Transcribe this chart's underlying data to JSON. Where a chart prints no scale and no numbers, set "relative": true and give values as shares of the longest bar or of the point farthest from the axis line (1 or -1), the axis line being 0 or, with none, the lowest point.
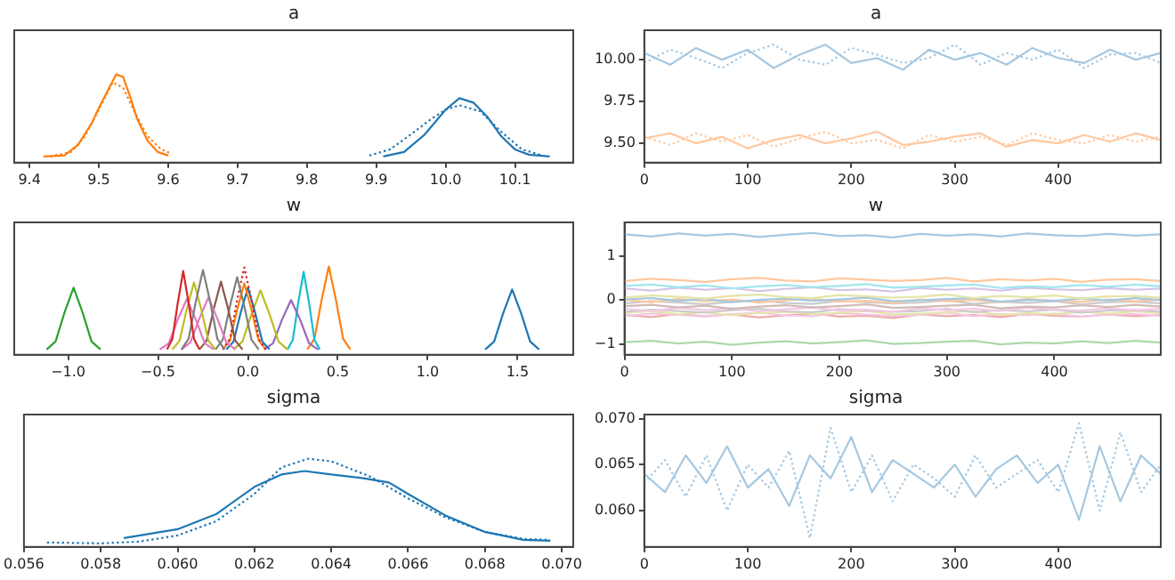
{
  "chart_data": [
    {
      "type": "line",
      "title": "a",
      "relative": true,
      "tick_labels": "x",
      "marker": "none",
      "xlim": [
        9.378,
        10.184
      ],
      "xticks": [
        9.4,
        9.5,
        9.6,
        9.7,
        9.8,
        9.9,
        {
          "value": 10.0,
          "label": "10.0"
        },
        10.1
      ],
      "series": [
        {
          "color": "#ff7f0e",
          "line_style": "solid",
          "x": [
            9.42,
            9.45,
            9.47,
            9.49,
            9.5,
            9.515,
            9.525,
            9.535,
            9.545,
            9.555,
            9.57,
            9.585,
            9.6
          ],
          "values": [
            0.07,
            0.08,
            0.2,
            0.45,
            0.62,
            0.85,
            1.0,
            0.97,
            0.75,
            0.5,
            0.25,
            0.12,
            0.08
          ]
        },
        {
          "color": "#ff7f0e",
          "line_style": "dotted",
          "x": [
            9.43,
            9.46,
            9.48,
            9.5,
            9.52,
            9.535,
            9.55,
            9.57,
            9.59,
            9.605
          ],
          "values": [
            0.07,
            0.12,
            0.3,
            0.6,
            0.91,
            0.85,
            0.6,
            0.3,
            0.15,
            0.1
          ]
        },
        {
          "color": "#1f77b4",
          "line_style": "solid",
          "x": [
            9.91,
            9.94,
            9.97,
            10.0,
            10.02,
            10.04,
            10.06,
            10.08,
            10.1,
            10.12,
            10.15
          ],
          "values": [
            0.07,
            0.12,
            0.32,
            0.6,
            0.73,
            0.68,
            0.52,
            0.3,
            0.15,
            0.09,
            0.07
          ]
        },
        {
          "color": "#1f77b4",
          "line_style": "dotted",
          "x": [
            9.89,
            9.92,
            9.95,
            9.98,
            10.0,
            10.02,
            10.05,
            10.08,
            10.11,
            10.14
          ],
          "values": [
            0.08,
            0.15,
            0.32,
            0.5,
            0.6,
            0.65,
            0.58,
            0.35,
            0.15,
            0.08
          ]
        }
      ]
    },
    {
      "type": "line",
      "title": "a",
      "marker": "none",
      "xlim": [
        0,
        499
      ],
      "xticks": [
        0,
        100,
        200,
        300,
        400
      ],
      "ylim": [
        9.385,
        10.176
      ],
      "yticks": [
        {
          "value": 9.5,
          "label": "9.50"
        },
        {
          "value": 9.75,
          "label": "9.75"
        },
        {
          "value": 10.0,
          "label": "10.00"
        }
      ],
      "x": [
        0,
        25,
        50,
        75,
        100,
        125,
        150,
        175,
        200,
        225,
        250,
        275,
        300,
        325,
        350,
        375,
        400,
        425,
        450,
        475,
        499
      ],
      "series": [
        {
          "color": "#a5c8e1",
          "line_style": "solid",
          "values": [
            10.04,
            9.97,
            10.07,
            10.0,
            10.06,
            9.95,
            10.03,
            10.09,
            9.98,
            10.01,
            9.94,
            10.06,
            10.0,
            10.04,
            9.97,
            10.07,
            10.01,
            9.98,
            10.06,
            10.0,
            10.04
          ]
        },
        {
          "color": "#a5c8e1",
          "line_style": "dotted",
          "values": [
            9.98,
            10.06,
            10.01,
            9.95,
            10.04,
            10.09,
            10.0,
            9.97,
            10.07,
            10.03,
            9.98,
            10.01,
            10.09,
            9.97,
            10.04,
            10.0,
            10.06,
            9.95,
            10.03,
            10.04,
            9.98
          ]
        },
        {
          "color": "#ffc89f",
          "line_style": "solid",
          "values": [
            9.53,
            9.56,
            9.5,
            9.54,
            9.47,
            9.52,
            9.55,
            9.5,
            9.53,
            9.57,
            9.49,
            9.51,
            9.54,
            9.56,
            9.48,
            9.52,
            9.5,
            9.55,
            9.51,
            9.56,
            9.52
          ]
        },
        {
          "color": "#ffc89f",
          "line_style": "dotted",
          "values": [
            9.54,
            9.49,
            9.56,
            9.51,
            9.55,
            9.48,
            9.53,
            9.57,
            9.5,
            9.52,
            9.47,
            9.55,
            9.51,
            9.54,
            9.49,
            9.56,
            9.52,
            9.5,
            9.55,
            9.51,
            9.54
          ]
        }
      ]
    },
    {
      "type": "line",
      "title": "w",
      "relative": true,
      "tick_labels": "x",
      "marker": "none",
      "xlim": [
        -1.3,
        1.81
      ],
      "xticks": [
        {
          "value": -1,
          "label": "−1.0"
        },
        {
          "value": -0.5,
          "label": "−0.5"
        },
        {
          "value": 0,
          "label": "0.0"
        },
        0.5,
        {
          "value": 1,
          "label": "1.0"
        },
        1.5
      ],
      "series": [
        {
          "color": "#2ca02c",
          "line_style": "solid",
          "x": [
            -1.12,
            -1.07,
            -1.02,
            -0.97,
            -0.92,
            -0.87,
            -0.82
          ],
          "values": [
            0.06,
            0.15,
            0.48,
            0.76,
            0.48,
            0.15,
            0.06
          ]
        },
        {
          "color": "#1f77b4",
          "line_style": "solid",
          "x": [
            1.32,
            1.37,
            1.42,
            1.47,
            1.52,
            1.57,
            1.62
          ],
          "values": [
            0.06,
            0.15,
            0.47,
            0.74,
            0.47,
            0.15,
            0.06
          ]
        },
        {
          "color": "#d62728",
          "line_style": "solid",
          "x": [
            -0.45,
            -0.42,
            -0.39,
            -0.36,
            -0.33,
            -0.3,
            -0.27
          ],
          "values": [
            0.06,
            0.18,
            0.59,
            0.95,
            0.59,
            0.18,
            0.06
          ]
        },
        {
          "color": "#7f7f7f",
          "line_style": "solid",
          "x": [
            -0.37,
            -0.33,
            -0.29,
            -0.25,
            -0.21,
            -0.17,
            -0.13
          ],
          "values": [
            0.06,
            0.18,
            0.6,
            0.96,
            0.6,
            0.18,
            0.06
          ]
        },
        {
          "color": "#bcbd22",
          "line_style": "solid",
          "x": [
            -0.42,
            -0.38,
            -0.34,
            -0.3,
            -0.26,
            -0.22,
            -0.18
          ],
          "values": [
            0.06,
            0.16,
            0.52,
            0.82,
            0.52,
            0.16,
            0.06
          ]
        },
        {
          "color": "#e377c2",
          "line_style": "solid",
          "x": [
            -0.49,
            -0.44,
            -0.39,
            -0.34,
            -0.29,
            -0.24,
            -0.19
          ],
          "values": [
            0.06,
            0.13,
            0.4,
            0.63,
            0.4,
            0.13,
            0.06
          ]
        },
        {
          "color": "#e377c2",
          "line_style": "solid",
          "x": [
            -0.37,
            -0.32,
            -0.27,
            -0.22,
            -0.17,
            -0.12,
            -0.07
          ],
          "values": [
            0.06,
            0.14,
            0.41,
            0.65,
            0.41,
            0.14,
            0.06
          ]
        },
        {
          "color": "#8c564b",
          "line_style": "solid",
          "x": [
            -0.27,
            -0.23,
            -0.19,
            -0.15,
            -0.11,
            -0.07,
            -0.03
          ],
          "values": [
            0.06,
            0.16,
            0.52,
            0.83,
            0.52,
            0.16,
            0.06
          ]
        },
        {
          "color": "#7f7f7f",
          "line_style": "solid",
          "x": [
            -0.18,
            -0.14,
            -0.1,
            -0.06,
            -0.02,
            0.02,
            0.06
          ],
          "values": [
            0.06,
            0.17,
            0.55,
            0.88,
            0.55,
            0.17,
            0.06
          ]
        },
        {
          "color": "#d62728",
          "line_style": "dotted",
          "x": [
            -0.14,
            -0.1,
            -0.06,
            -0.02,
            0.02,
            0.06,
            0.1
          ],
          "values": [
            0.06,
            0.18,
            0.62,
            0.99,
            0.62,
            0.18,
            0.06
          ]
        },
        {
          "color": "#ff7f0e",
          "line_style": "solid",
          "x": [
            -0.14,
            -0.1,
            -0.06,
            -0.02,
            0.02,
            0.06,
            0.1
          ],
          "values": [
            0.06,
            0.16,
            0.51,
            0.81,
            0.51,
            0.16,
            0.06
          ]
        },
        {
          "color": "#1f77b4",
          "line_style": "solid",
          "x": [
            -0.12,
            -0.08,
            -0.04,
            0,
            0.04,
            0.08,
            0.12
          ],
          "values": [
            0.06,
            0.15,
            0.48,
            0.76,
            0.48,
            0.15,
            0.06
          ]
        },
        {
          "color": "#bcbd22",
          "line_style": "solid",
          "x": [
            -0.08,
            -0.03,
            0.02,
            0.07,
            0.12,
            0.17,
            0.22
          ],
          "values": [
            0.06,
            0.15,
            0.46,
            0.73,
            0.46,
            0.15,
            0.06
          ]
        },
        {
          "color": "#9467bd",
          "line_style": "solid",
          "x": [
            0.09,
            0.14,
            0.19,
            0.24,
            0.29,
            0.34,
            0.39
          ],
          "values": [
            0.06,
            0.13,
            0.4,
            0.62,
            0.4,
            0.13,
            0.06
          ]
        },
        {
          "color": "#17becf",
          "line_style": "solid",
          "x": [
            0.22,
            0.25,
            0.28,
            0.31,
            0.34,
            0.37,
            0.4
          ],
          "values": [
            0.06,
            0.17,
            0.59,
            0.94,
            0.59,
            0.17,
            0.06
          ]
        },
        {
          "color": "#ff7f0e",
          "line_style": "solid",
          "x": [
            0.33,
            0.37,
            0.41,
            0.45,
            0.49,
            0.53,
            0.57
          ],
          "values": [
            0.06,
            0.18,
            0.62,
            1.0,
            0.62,
            0.18,
            0.06
          ]
        }
      ]
    },
    {
      "type": "line",
      "title": "w",
      "marker": "none",
      "xlim": [
        0,
        499
      ],
      "xticks": [
        0,
        100,
        200,
        300,
        400
      ],
      "ylim": [
        -1.245,
        1.76
      ],
      "yticks": [
        {
          "value": -1,
          "label": "−1"
        },
        0,
        1
      ],
      "x": [
        0,
        25,
        50,
        75,
        100,
        125,
        150,
        175,
        200,
        225,
        250,
        275,
        300,
        325,
        350,
        375,
        400,
        425,
        450,
        475,
        499
      ],
      "series": [
        {
          "color": "#a5c8e1",
          "line_style": "solid",
          "values": [
            1.49,
            1.44,
            1.51,
            1.46,
            1.5,
            1.43,
            1.48,
            1.52,
            1.45,
            1.47,
            1.42,
            1.5,
            1.46,
            1.49,
            1.44,
            1.51,
            1.47,
            1.45,
            1.5,
            1.46,
            1.49
          ]
        },
        {
          "color": "#ffc89f",
          "line_style": "solid",
          "values": [
            0.43,
            0.48,
            0.45,
            0.41,
            0.47,
            0.5,
            0.44,
            0.42,
            0.49,
            0.46,
            0.43,
            0.45,
            0.5,
            0.42,
            0.47,
            0.44,
            0.48,
            0.41,
            0.46,
            0.47,
            0.43
          ]
        },
        {
          "color": "#a2e6ed",
          "line_style": "solid",
          "values": [
            0.32,
            0.35,
            0.29,
            0.33,
            0.26,
            0.31,
            0.34,
            0.29,
            0.32,
            0.36,
            0.28,
            0.3,
            0.33,
            0.35,
            0.27,
            0.31,
            0.29,
            0.34,
            0.3,
            0.35,
            0.31
          ]
        },
        {
          "color": "#d4c2e5",
          "line_style": "solid",
          "values": [
            0.26,
            0.21,
            0.28,
            0.23,
            0.27,
            0.2,
            0.25,
            0.29,
            0.22,
            0.24,
            0.19,
            0.27,
            0.23,
            0.26,
            0.21,
            0.28,
            0.24,
            0.22,
            0.27,
            0.23,
            0.26
          ]
        },
        {
          "color": "#e4e5a7",
          "line_style": "solid",
          "values": [
            0.05,
            0.1,
            0.07,
            0.03,
            0.09,
            0.12,
            0.06,
            0.04,
            0.11,
            0.08,
            0.05,
            0.07,
            0.12,
            0.04,
            0.09,
            0.06,
            0.1,
            0.03,
            0.08,
            0.09,
            0.05
          ]
        },
        {
          "color": "#a5c8e1",
          "line_style": "solid",
          "values": [
            0.01,
            0.04,
            -0.02,
            0.02,
            -0.05,
            0,
            0.03,
            -0.02,
            0.01,
            0.05,
            -0.03,
            -0.01,
            0.02,
            0.04,
            -0.04,
            0,
            -0.02,
            0.03,
            -0.01,
            0.04,
            0
          ]
        },
        {
          "color": "#ffc89f",
          "line_style": "solid",
          "values": [
            0,
            -0.05,
            0.02,
            -0.03,
            0.01,
            -0.06,
            -0.01,
            0.03,
            -0.04,
            -0.02,
            -0.07,
            0.01,
            -0.03,
            0,
            -0.05,
            0.02,
            -0.02,
            -0.04,
            0.01,
            -0.03,
            0
          ]
        },
        {
          "color": "#cbcbcb",
          "line_style": "solid",
          "values": [
            -0.08,
            -0.03,
            -0.06,
            -0.1,
            -0.04,
            -0.01,
            -0.07,
            -0.09,
            -0.02,
            -0.05,
            -0.08,
            -0.06,
            -0.01,
            -0.09,
            -0.04,
            -0.07,
            -0.03,
            -0.1,
            -0.05,
            -0.04,
            -0.08
          ]
        },
        {
          "color": "#d1bbb7",
          "line_style": "solid",
          "values": [
            -0.14,
            -0.11,
            -0.17,
            -0.13,
            -0.2,
            -0.15,
            -0.12,
            -0.17,
            -0.14,
            -0.1,
            -0.18,
            -0.16,
            -0.13,
            -0.11,
            -0.19,
            -0.15,
            -0.17,
            -0.12,
            -0.16,
            -0.11,
            -0.15
          ]
        },
        {
          "color": "#f4c7e5",
          "line_style": "solid",
          "values": [
            -0.2,
            -0.25,
            -0.18,
            -0.23,
            -0.19,
            -0.26,
            -0.21,
            -0.17,
            -0.24,
            -0.22,
            -0.27,
            -0.19,
            -0.23,
            -0.2,
            -0.25,
            -0.18,
            -0.22,
            -0.24,
            -0.19,
            -0.23,
            -0.2
          ]
        },
        {
          "color": "#cbcbcb",
          "line_style": "solid",
          "values": [
            -0.27,
            -0.22,
            -0.25,
            -0.29,
            -0.23,
            -0.2,
            -0.26,
            -0.28,
            -0.21,
            -0.24,
            -0.27,
            -0.25,
            -0.2,
            -0.28,
            -0.23,
            -0.26,
            -0.22,
            -0.29,
            -0.24,
            -0.23,
            -0.27
          ]
        },
        {
          "color": "#e4e5a7",
          "line_style": "solid",
          "values": [
            -0.29,
            -0.26,
            -0.32,
            -0.28,
            -0.35,
            -0.3,
            -0.27,
            -0.32,
            -0.29,
            -0.25,
            -0.33,
            -0.31,
            -0.28,
            -0.26,
            -0.34,
            -0.3,
            -0.32,
            -0.27,
            -0.31,
            -0.26,
            -0.3
          ]
        },
        {
          "color": "#f4c7e5",
          "line_style": "solid",
          "values": [
            -0.36,
            -0.31,
            -0.34,
            -0.38,
            -0.32,
            -0.29,
            -0.35,
            -0.37,
            -0.3,
            -0.33,
            -0.36,
            -0.34,
            -0.29,
            -0.37,
            -0.32,
            -0.35,
            -0.31,
            -0.38,
            -0.33,
            -0.32,
            -0.36
          ]
        },
        {
          "color": "#efa9a9",
          "line_style": "solid",
          "values": [
            -0.34,
            -0.39,
            -0.32,
            -0.37,
            -0.33,
            -0.4,
            -0.35,
            -0.31,
            -0.38,
            -0.36,
            -0.41,
            -0.33,
            -0.37,
            -0.34,
            -0.39,
            -0.32,
            -0.36,
            -0.38,
            -0.33,
            -0.37,
            -0.34
          ]
        },
        {
          "color": "#abd9ab",
          "line_style": "solid",
          "values": [
            -0.96,
            -0.93,
            -0.99,
            -0.95,
            -1.02,
            -0.97,
            -0.94,
            -0.99,
            -0.96,
            -0.92,
            -1.0,
            -0.98,
            -0.95,
            -0.93,
            -1.01,
            -0.97,
            -0.99,
            -0.94,
            -0.98,
            -0.93,
            -0.97
          ]
        }
      ]
    },
    {
      "type": "line",
      "title": "sigma",
      "relative": true,
      "tick_labels": "x",
      "marker": "none",
      "xlim": [
        0.056,
        0.0703
      ],
      "xticks": [
        0.056,
        0.058,
        {
          "value": 0.06,
          "label": "0.060"
        },
        0.062,
        0.064,
        0.066,
        0.068,
        {
          "value": 0.07,
          "label": "0.070"
        }
      ],
      "series": [
        {
          "color": "#1f77b4",
          "line_style": "solid",
          "x": [
            0.0586,
            0.06,
            0.061,
            0.062,
            0.0627,
            0.0633,
            0.064,
            0.0648,
            0.0655,
            0.066,
            0.067,
            0.068,
            0.069,
            0.0697
          ],
          "values": [
            0.1,
            0.2,
            0.37,
            0.68,
            0.82,
            0.86,
            0.82,
            0.78,
            0.73,
            0.6,
            0.35,
            0.17,
            0.08,
            0.07
          ]
        },
        {
          "color": "#1f77b4",
          "line_style": "dotted",
          "x": [
            0.0566,
            0.058,
            0.059,
            0.06,
            0.061,
            0.062,
            0.0627,
            0.0634,
            0.064,
            0.065,
            0.066,
            0.067,
            0.068,
            0.069,
            0.0697
          ],
          "values": [
            0.05,
            0.04,
            0.06,
            0.13,
            0.29,
            0.6,
            0.9,
            1.0,
            0.97,
            0.8,
            0.55,
            0.33,
            0.17,
            0.09,
            0.08
          ]
        }
      ]
    },
    {
      "type": "line",
      "title": "sigma",
      "marker": "none",
      "xlim": [
        0,
        499
      ],
      "xticks": [
        0,
        100,
        200,
        300,
        400
      ],
      "ylim": [
        0.05604,
        0.07045
      ],
      "yticks": [
        {
          "value": 0.06,
          "label": "0.060"
        },
        {
          "value": 0.065,
          "label": "0.065"
        },
        {
          "value": 0.07,
          "label": "0.070"
        }
      ],
      "x": [
        0,
        20,
        40,
        60,
        80,
        100,
        120,
        140,
        160,
        180,
        200,
        220,
        240,
        260,
        280,
        300,
        320,
        340,
        360,
        380,
        400,
        420,
        440,
        460,
        480,
        499
      ],
      "series": [
        {
          "color": "#a5c8e1",
          "line_style": "solid",
          "values": [
            0.064,
            0.062,
            0.066,
            0.063,
            0.067,
            0.0625,
            0.0645,
            0.0605,
            0.066,
            0.0635,
            0.068,
            0.062,
            0.0655,
            0.064,
            0.0625,
            0.065,
            0.0615,
            0.0645,
            0.066,
            0.063,
            0.065,
            0.059,
            0.067,
            0.061,
            0.066,
            0.064
          ]
        },
        {
          "color": "#a5c8e1",
          "line_style": "dotted",
          "values": [
            0.063,
            0.0655,
            0.0615,
            0.066,
            0.06,
            0.065,
            0.0625,
            0.0665,
            0.057,
            0.069,
            0.062,
            0.066,
            0.061,
            0.065,
            0.0635,
            0.0615,
            0.066,
            0.0625,
            0.064,
            0.0655,
            0.062,
            0.0695,
            0.06,
            0.0685,
            0.062,
            0.065
          ]
        }
      ]
    }
  ]
}
